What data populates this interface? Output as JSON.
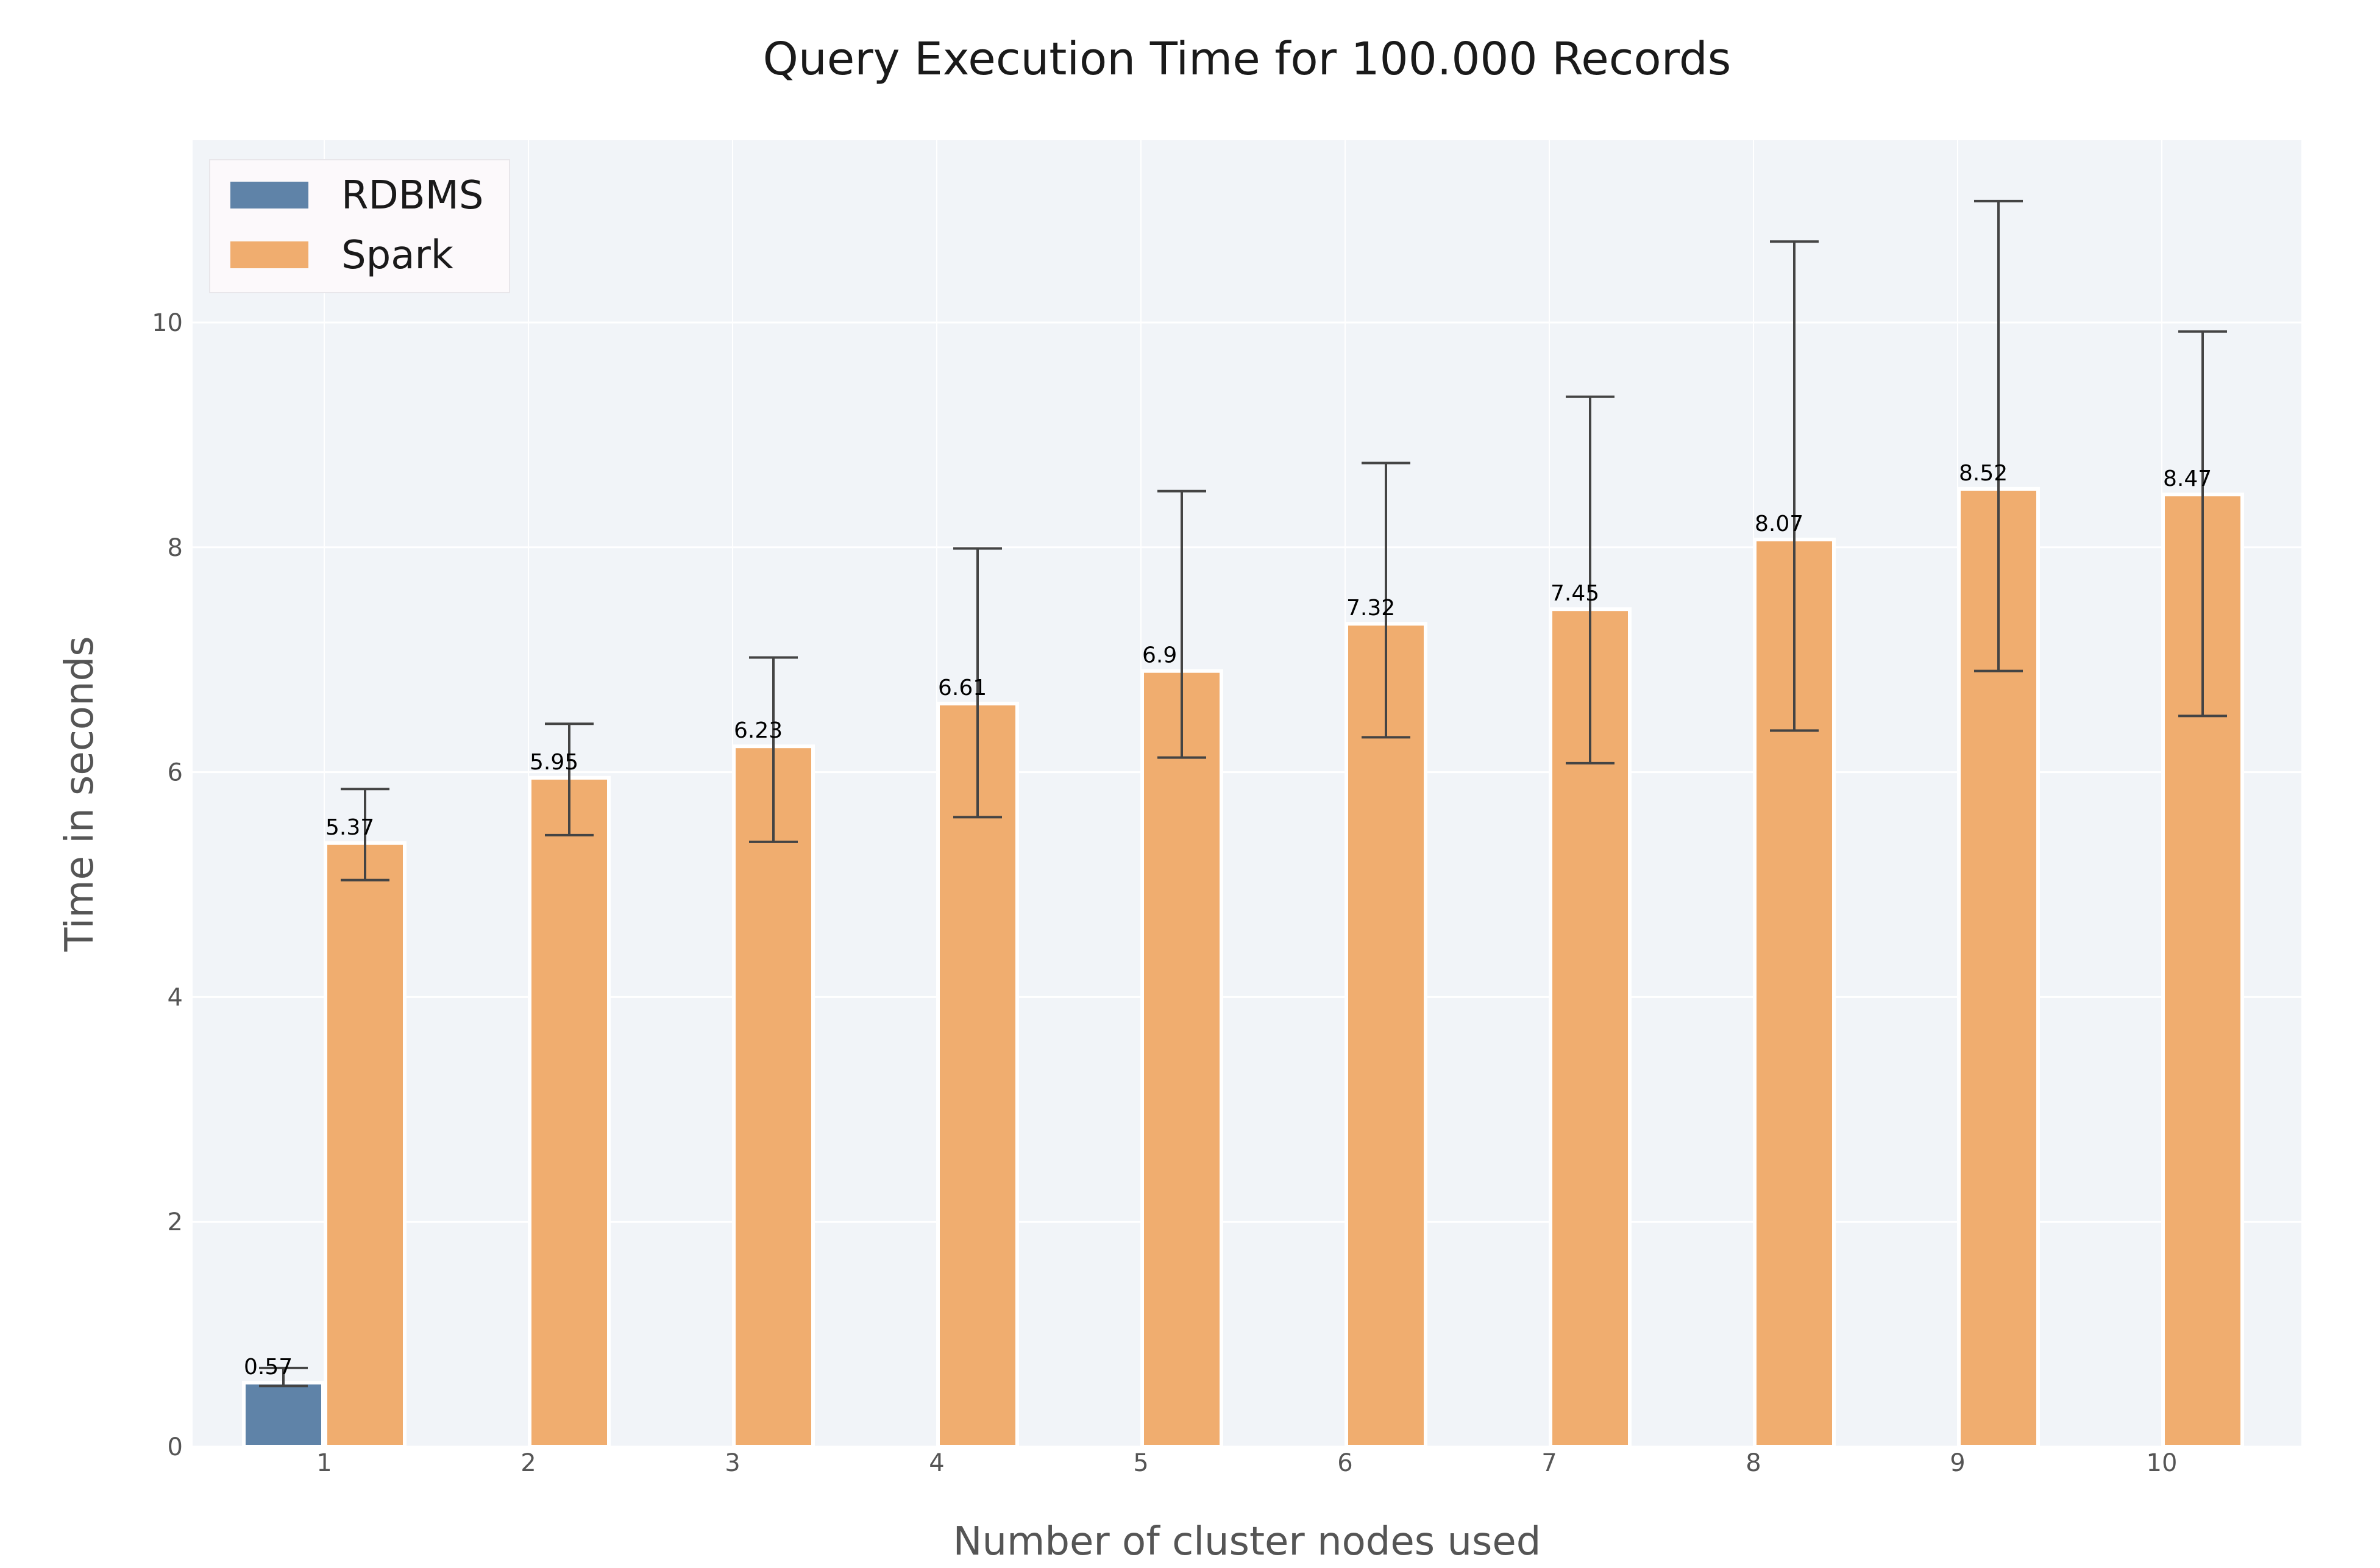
{
  "chart_data": {
    "type": "bar",
    "title": "Query Execution Time for 100.000 Records",
    "xlabel": "Number of cluster nodes used",
    "ylabel": "Time in seconds",
    "categories": [
      "1",
      "2",
      "3",
      "4",
      "5",
      "6",
      "7",
      "8",
      "9",
      "10"
    ],
    "ylim": [
      0,
      11.65
    ],
    "yticks": [
      "0",
      "2",
      "4",
      "6",
      "8",
      "10"
    ],
    "grid": true,
    "legend_position": "top-left",
    "series": [
      {
        "name": "RDBMS",
        "color": "#5f83a8",
        "values": [
          0.57,
          null,
          null,
          null,
          null,
          null,
          null,
          null,
          null,
          null
        ],
        "labels": [
          "0.57",
          "",
          "",
          "",
          "",
          "",
          "",
          "",
          "",
          ""
        ],
        "error_low": [
          0.54,
          null,
          null,
          null,
          null,
          null,
          null,
          null,
          null,
          null
        ],
        "error_high": [
          0.7,
          null,
          null,
          null,
          null,
          null,
          null,
          null,
          null,
          null
        ]
      },
      {
        "name": "Spark",
        "color": "#f0ad6f",
        "values": [
          5.37,
          5.95,
          6.23,
          6.61,
          6.9,
          7.32,
          7.45,
          8.07,
          8.52,
          8.47
        ],
        "labels": [
          "5.37",
          "5.95",
          "6.23",
          "6.61",
          "6.9",
          "7.32",
          "7.45",
          "8.07",
          "8.52",
          "8.47"
        ],
        "error_low": [
          5.04,
          5.44,
          5.38,
          5.6,
          6.13,
          6.31,
          6.08,
          6.37,
          6.9,
          6.5
        ],
        "error_high": [
          5.85,
          6.43,
          7.02,
          7.99,
          8.5,
          8.75,
          9.34,
          10.72,
          11.08,
          9.92
        ]
      }
    ]
  }
}
